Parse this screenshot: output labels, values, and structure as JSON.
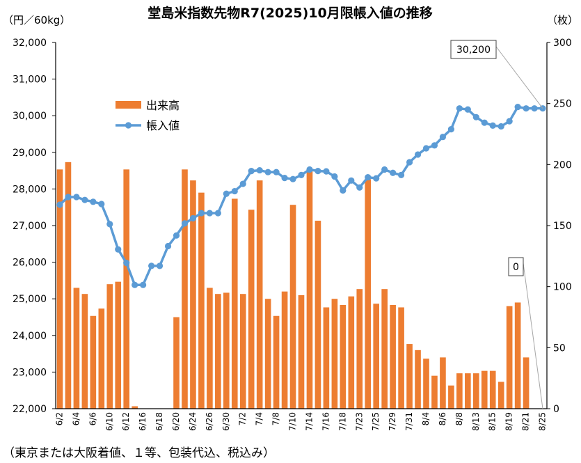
{
  "chart_data": {
    "type": "bar",
    "title": "堂島米指数先物R7(2025)10月限帳入値の推移",
    "y_left_label": "（円／60kg）",
    "y_right_label": "（枚）",
    "y_left_range": [
      22000,
      32000
    ],
    "y_right_range": [
      0,
      300
    ],
    "y_left_ticks": [
      "22,000",
      "23,000",
      "24,000",
      "25,000",
      "26,000",
      "27,000",
      "28,000",
      "29,000",
      "30,000",
      "31,000",
      "32,000"
    ],
    "y_right_ticks": [
      "0",
      "50",
      "100",
      "150",
      "200",
      "250",
      "300"
    ],
    "x_tick_labels": [
      "6/2",
      "6/4",
      "6/6",
      "6/10",
      "6/12",
      "6/16",
      "6/18",
      "6/20",
      "6/24",
      "6/26",
      "6/30",
      "7/2",
      "7/4",
      "7/8",
      "7/10",
      "7/14",
      "7/16",
      "7/18",
      "7/23",
      "7/25",
      "7/29",
      "7/31",
      "8/4",
      "8/6",
      "8/8",
      "8/13",
      "8/15",
      "8/19",
      "8/21",
      "8/25"
    ],
    "series": [
      {
        "name": "出来高",
        "type": "bar",
        "axis": "right",
        "color": "#ED7D31",
        "values": [
          196,
          202,
          99,
          94,
          76,
          82,
          102,
          104,
          196,
          2,
          0,
          0,
          0,
          0,
          75,
          196,
          187,
          177,
          99,
          94,
          95,
          172,
          94,
          163,
          187,
          90,
          76,
          96,
          167,
          93,
          195,
          154,
          83,
          90,
          85,
          92,
          98,
          188,
          86,
          98,
          85,
          83,
          53,
          48,
          41,
          27,
          42,
          19,
          29,
          29,
          29,
          31,
          31,
          22,
          84,
          87,
          42,
          0,
          0
        ]
      },
      {
        "name": "帳入値",
        "type": "line",
        "axis": "left",
        "color": "#5B9BD5",
        "values": [
          27570,
          27780,
          27780,
          27700,
          27650,
          27590,
          27040,
          26350,
          25980,
          25380,
          25380,
          25900,
          25900,
          26440,
          26730,
          27060,
          27200,
          27340,
          27340,
          27340,
          27870,
          27940,
          28140,
          28490,
          28510,
          28460,
          28460,
          28300,
          28270,
          28380,
          28530,
          28490,
          28480,
          28340,
          27960,
          28230,
          28040,
          28320,
          28290,
          28530,
          28440,
          28380,
          28730,
          28940,
          29110,
          29190,
          29420,
          29630,
          30200,
          30170,
          29960,
          29810,
          29730,
          29710,
          29850,
          30240,
          30200,
          30200,
          30200
        ]
      }
    ],
    "annotations": [
      "30,200",
      "0"
    ],
    "legend": "top-left",
    "grid": false,
    "footnote": "（東京または大阪着値、１等、包装代込、税込み）"
  }
}
